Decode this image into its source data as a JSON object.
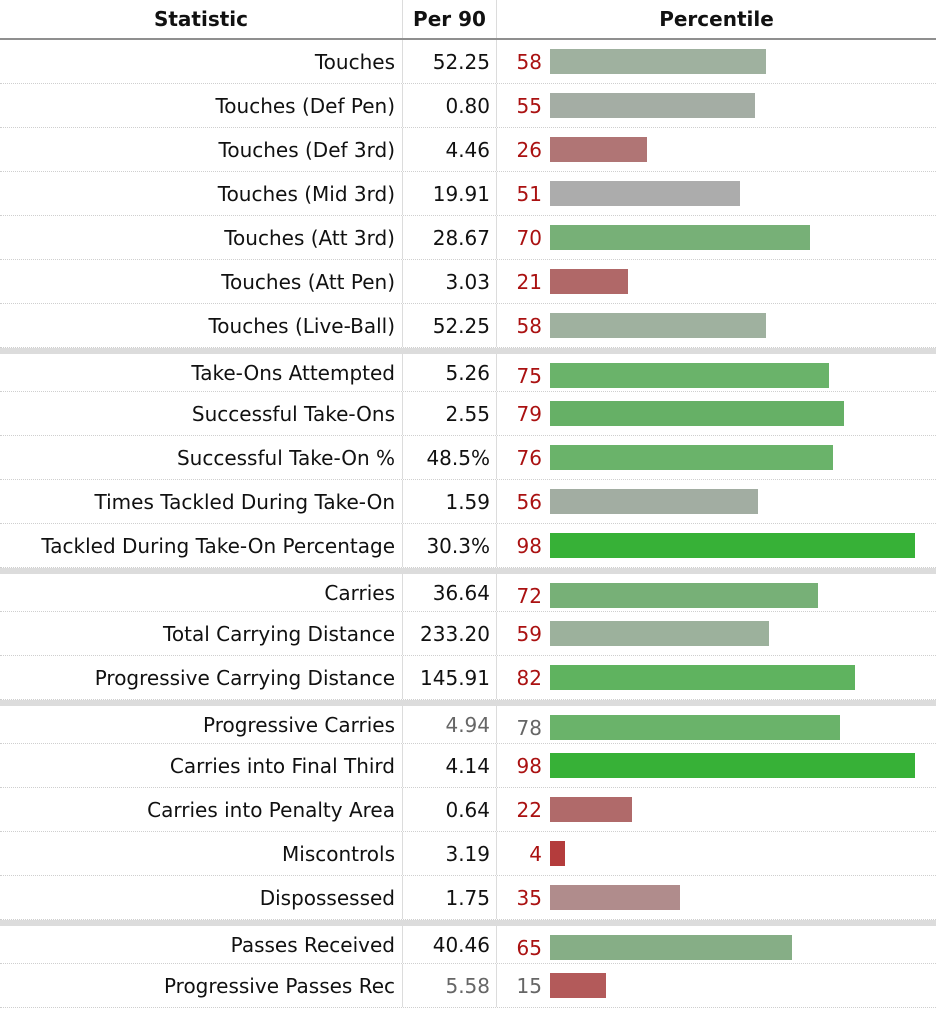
{
  "chart_data": {
    "type": "table",
    "columns": [
      "Statistic",
      "Per 90",
      "Percentile"
    ],
    "groups": [
      [
        {
          "stat": "Touches",
          "per90": "52.25",
          "pct": 58,
          "color": "#9fb19f"
        },
        {
          "stat": "Touches (Def Pen)",
          "per90": "0.80",
          "pct": 55,
          "color": "#a4ada4"
        },
        {
          "stat": "Touches (Def 3rd)",
          "per90": "4.46",
          "pct": 26,
          "color": "#b07575"
        },
        {
          "stat": "Touches (Mid 3rd)",
          "per90": "19.91",
          "pct": 51,
          "color": "#acacac"
        },
        {
          "stat": "Touches (Att 3rd)",
          "per90": "28.67",
          "pct": 70,
          "color": "#77b077"
        },
        {
          "stat": "Touches (Att Pen)",
          "per90": "3.03",
          "pct": 21,
          "color": "#b06868"
        },
        {
          "stat": "Touches (Live-Ball)",
          "per90": "52.25",
          "pct": 58,
          "color": "#9fb19f"
        }
      ],
      [
        {
          "stat": "Take-Ons Attempted",
          "per90": "5.26",
          "pct": 75,
          "color": "#6ab36a"
        },
        {
          "stat": "Successful Take-Ons",
          "per90": "2.55",
          "pct": 79,
          "color": "#66b066"
        },
        {
          "stat": "Successful Take-On %",
          "per90": "48.5%",
          "pct": 76,
          "color": "#6ab36a"
        },
        {
          "stat": "Times Tackled During Take-On",
          "per90": "1.59",
          "pct": 56,
          "color": "#a2ada2"
        },
        {
          "stat": "Tackled During Take-On Percentage",
          "per90": "30.3%",
          "pct": 98,
          "color": "#37b137"
        }
      ],
      [
        {
          "stat": "Carries",
          "per90": "36.64",
          "pct": 72,
          "color": "#77b077"
        },
        {
          "stat": "Total Carrying Distance",
          "per90": "233.20",
          "pct": 59,
          "color": "#9cb19c"
        },
        {
          "stat": "Progressive Carrying Distance",
          "per90": "145.91",
          "pct": 82,
          "color": "#5fb35f"
        }
      ],
      [
        {
          "stat": "Progressive Carries",
          "per90": "4.94",
          "pct": 78,
          "color": "#6ab36a",
          "muted": true
        },
        {
          "stat": "Carries into Final Third",
          "per90": "4.14",
          "pct": 98,
          "color": "#37b137"
        },
        {
          "stat": "Carries into Penalty Area",
          "per90": "0.64",
          "pct": 22,
          "color": "#b06a6a"
        },
        {
          "stat": "Miscontrols",
          "per90": "3.19",
          "pct": 4,
          "color": "#b43c3c"
        },
        {
          "stat": "Dispossessed",
          "per90": "1.75",
          "pct": 35,
          "color": "#b08c8c"
        }
      ],
      [
        {
          "stat": "Passes Received",
          "per90": "40.46",
          "pct": 65,
          "color": "#86ae86"
        },
        {
          "stat": "Progressive Passes Rec",
          "per90": "5.58",
          "pct": 15,
          "color": "#b35a5a",
          "muted": true
        }
      ]
    ],
    "xlim": [
      0,
      100
    ]
  }
}
